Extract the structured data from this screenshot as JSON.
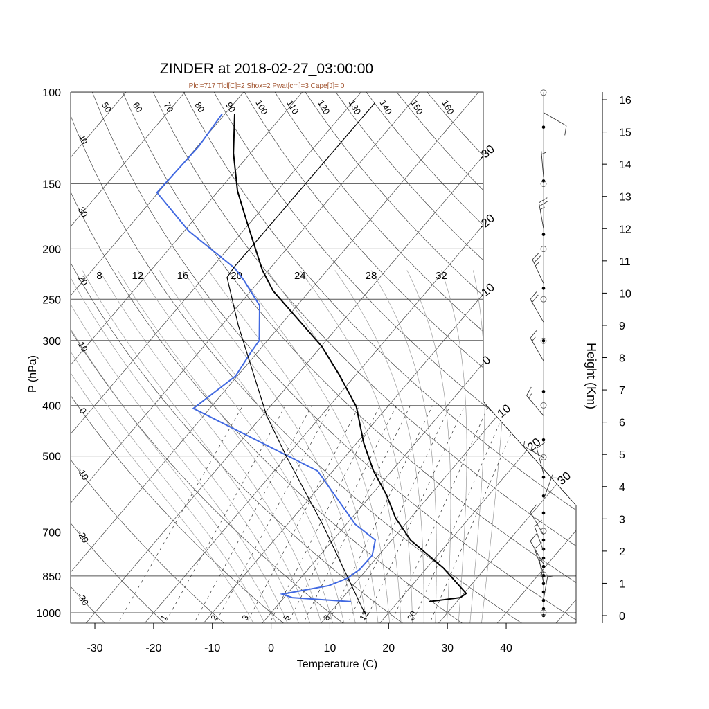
{
  "title": "ZINDER at 2018-02-27_03:00:00",
  "subtitle": "Plcl=717 Tlcl[C]=2 Shox=2 Pwat[cm]=3 Cape[J]= 0",
  "colors": {
    "temperature": "#000000",
    "dewpoint": "#4169e1",
    "subtitle": "#a0522d",
    "grid": "#333333",
    "moist": "#9a9a9a"
  },
  "chart_data": {
    "type": "line",
    "subtype": "skew-T log-p",
    "title": "ZINDER at 2018-02-27_03:00:00",
    "xlabel": "Temperature (C)",
    "ylabel": "P (hPa)",
    "y2label": "Height (Km)",
    "xlim": [
      -34,
      52
    ],
    "ylim": [
      1050,
      100
    ],
    "x_ticks": [
      -30,
      -20,
      -10,
      0,
      10,
      20,
      30,
      40
    ],
    "p_ticks": [
      100,
      150,
      200,
      250,
      300,
      400,
      500,
      700,
      850,
      1000
    ],
    "height_ticks": [
      0,
      1,
      2,
      3,
      4,
      5,
      6,
      7,
      8,
      9,
      10,
      11,
      12,
      13,
      14,
      15,
      16
    ],
    "dry_adiabat_labels": [
      -30,
      -20,
      -10,
      0,
      10,
      20,
      30,
      40,
      50,
      60,
      70,
      80,
      90,
      100,
      110,
      120,
      130,
      140,
      150,
      160
    ],
    "moist_adiabat_labels": [
      8,
      12,
      16,
      20,
      24,
      28,
      32
    ],
    "mixing_ratio_labels": [
      1,
      2,
      3,
      5,
      8,
      12,
      20
    ],
    "isotherm_labels": [
      -30,
      -20,
      -10,
      0,
      10,
      20,
      30
    ],
    "series": [
      {
        "name": "temperature",
        "p": [
          952,
          935,
          918,
          820,
          725,
          658,
          594,
          534,
          472,
          402,
          348,
          308,
          241,
          220,
          197,
          177,
          155,
          131,
          110
        ],
        "T": [
          25.2,
          30.0,
          30.4,
          22.8,
          13.2,
          7.5,
          2.6,
          -3.1,
          -8.8,
          -15.3,
          -23.0,
          -29.9,
          -46.2,
          -51.0,
          -56.0,
          -60.8,
          -66.7,
          -72.9,
          -78.4
        ]
      },
      {
        "name": "dewpoint",
        "p": [
          952,
          935,
          921,
          887,
          858,
          825,
          776,
          725,
          676,
          534,
          405,
          351,
          317,
          300,
          257,
          230,
          218,
          185,
          156,
          127,
          110
        ],
        "T": [
          12.0,
          1.4,
          -0.8,
          5.9,
          8.0,
          8.8,
          8.9,
          7.2,
          1.5,
          -12.6,
          -42.8,
          -40.3,
          -41.1,
          -41.4,
          -46.4,
          -52.7,
          -56.0,
          -69.2,
          -80.2,
          -79.8,
          -80.5
        ]
      },
      {
        "name": "parcel",
        "p": [
          1006,
          682,
          502,
          418,
          281,
          227,
          217,
          105
        ],
        "T": [
          16.2,
          -3.6,
          -19.9,
          -29.3,
          -47.1,
          -56.0,
          -56.3,
          -56.1
        ]
      }
    ],
    "wind": [
      {
        "height_km": 15.6,
        "dir": 120,
        "speed_kt": 10
      },
      {
        "height_km": 13.6,
        "dir": 355,
        "speed_kt": 5
      },
      {
        "height_km": 12.0,
        "dir": 350,
        "speed_kt": 25
      },
      {
        "height_km": 10.3,
        "dir": 335,
        "speed_kt": 25
      },
      {
        "height_km": 9.1,
        "dir": 330,
        "speed_kt": 20
      },
      {
        "height_km": 7.9,
        "dir": 330,
        "speed_kt": 15
      },
      {
        "height_km": 6.2,
        "dir": 320,
        "speed_kt": 15
      },
      {
        "height_km": 4.9,
        "dir": 300,
        "speed_kt": 5
      },
      {
        "height_km": 4.4,
        "dir": 345,
        "speed_kt": 10
      },
      {
        "height_km": 3.6,
        "dir": 20,
        "speed_kt": 5
      },
      {
        "height_km": 2.5,
        "dir": 330,
        "speed_kt": 10
      },
      {
        "height_km": 2.0,
        "dir": 340,
        "speed_kt": 10
      },
      {
        "height_km": 1.6,
        "dir": 330,
        "speed_kt": 10
      },
      {
        "height_km": 1.3,
        "dir": 340,
        "speed_kt": 10
      },
      {
        "height_km": 1.0,
        "dir": 350,
        "speed_kt": 5
      },
      {
        "height_km": 0.5,
        "dir": 10,
        "speed_kt": 5
      }
    ],
    "obs_levels_km": [
      15.15,
      13.48,
      11.82,
      10.15,
      8.52,
      6.95,
      5.45,
      4.29,
      3.71,
      3.18,
      2.34,
      2.06,
      1.78,
      1.52,
      1.24,
      0.99,
      0.73,
      0.47,
      0.21,
      0
    ],
    "std_levels_km": [
      16.22,
      13.39,
      11.37,
      9.81,
      8.52,
      6.52,
      4.91,
      2.62,
      1.27,
      0.09
    ]
  }
}
